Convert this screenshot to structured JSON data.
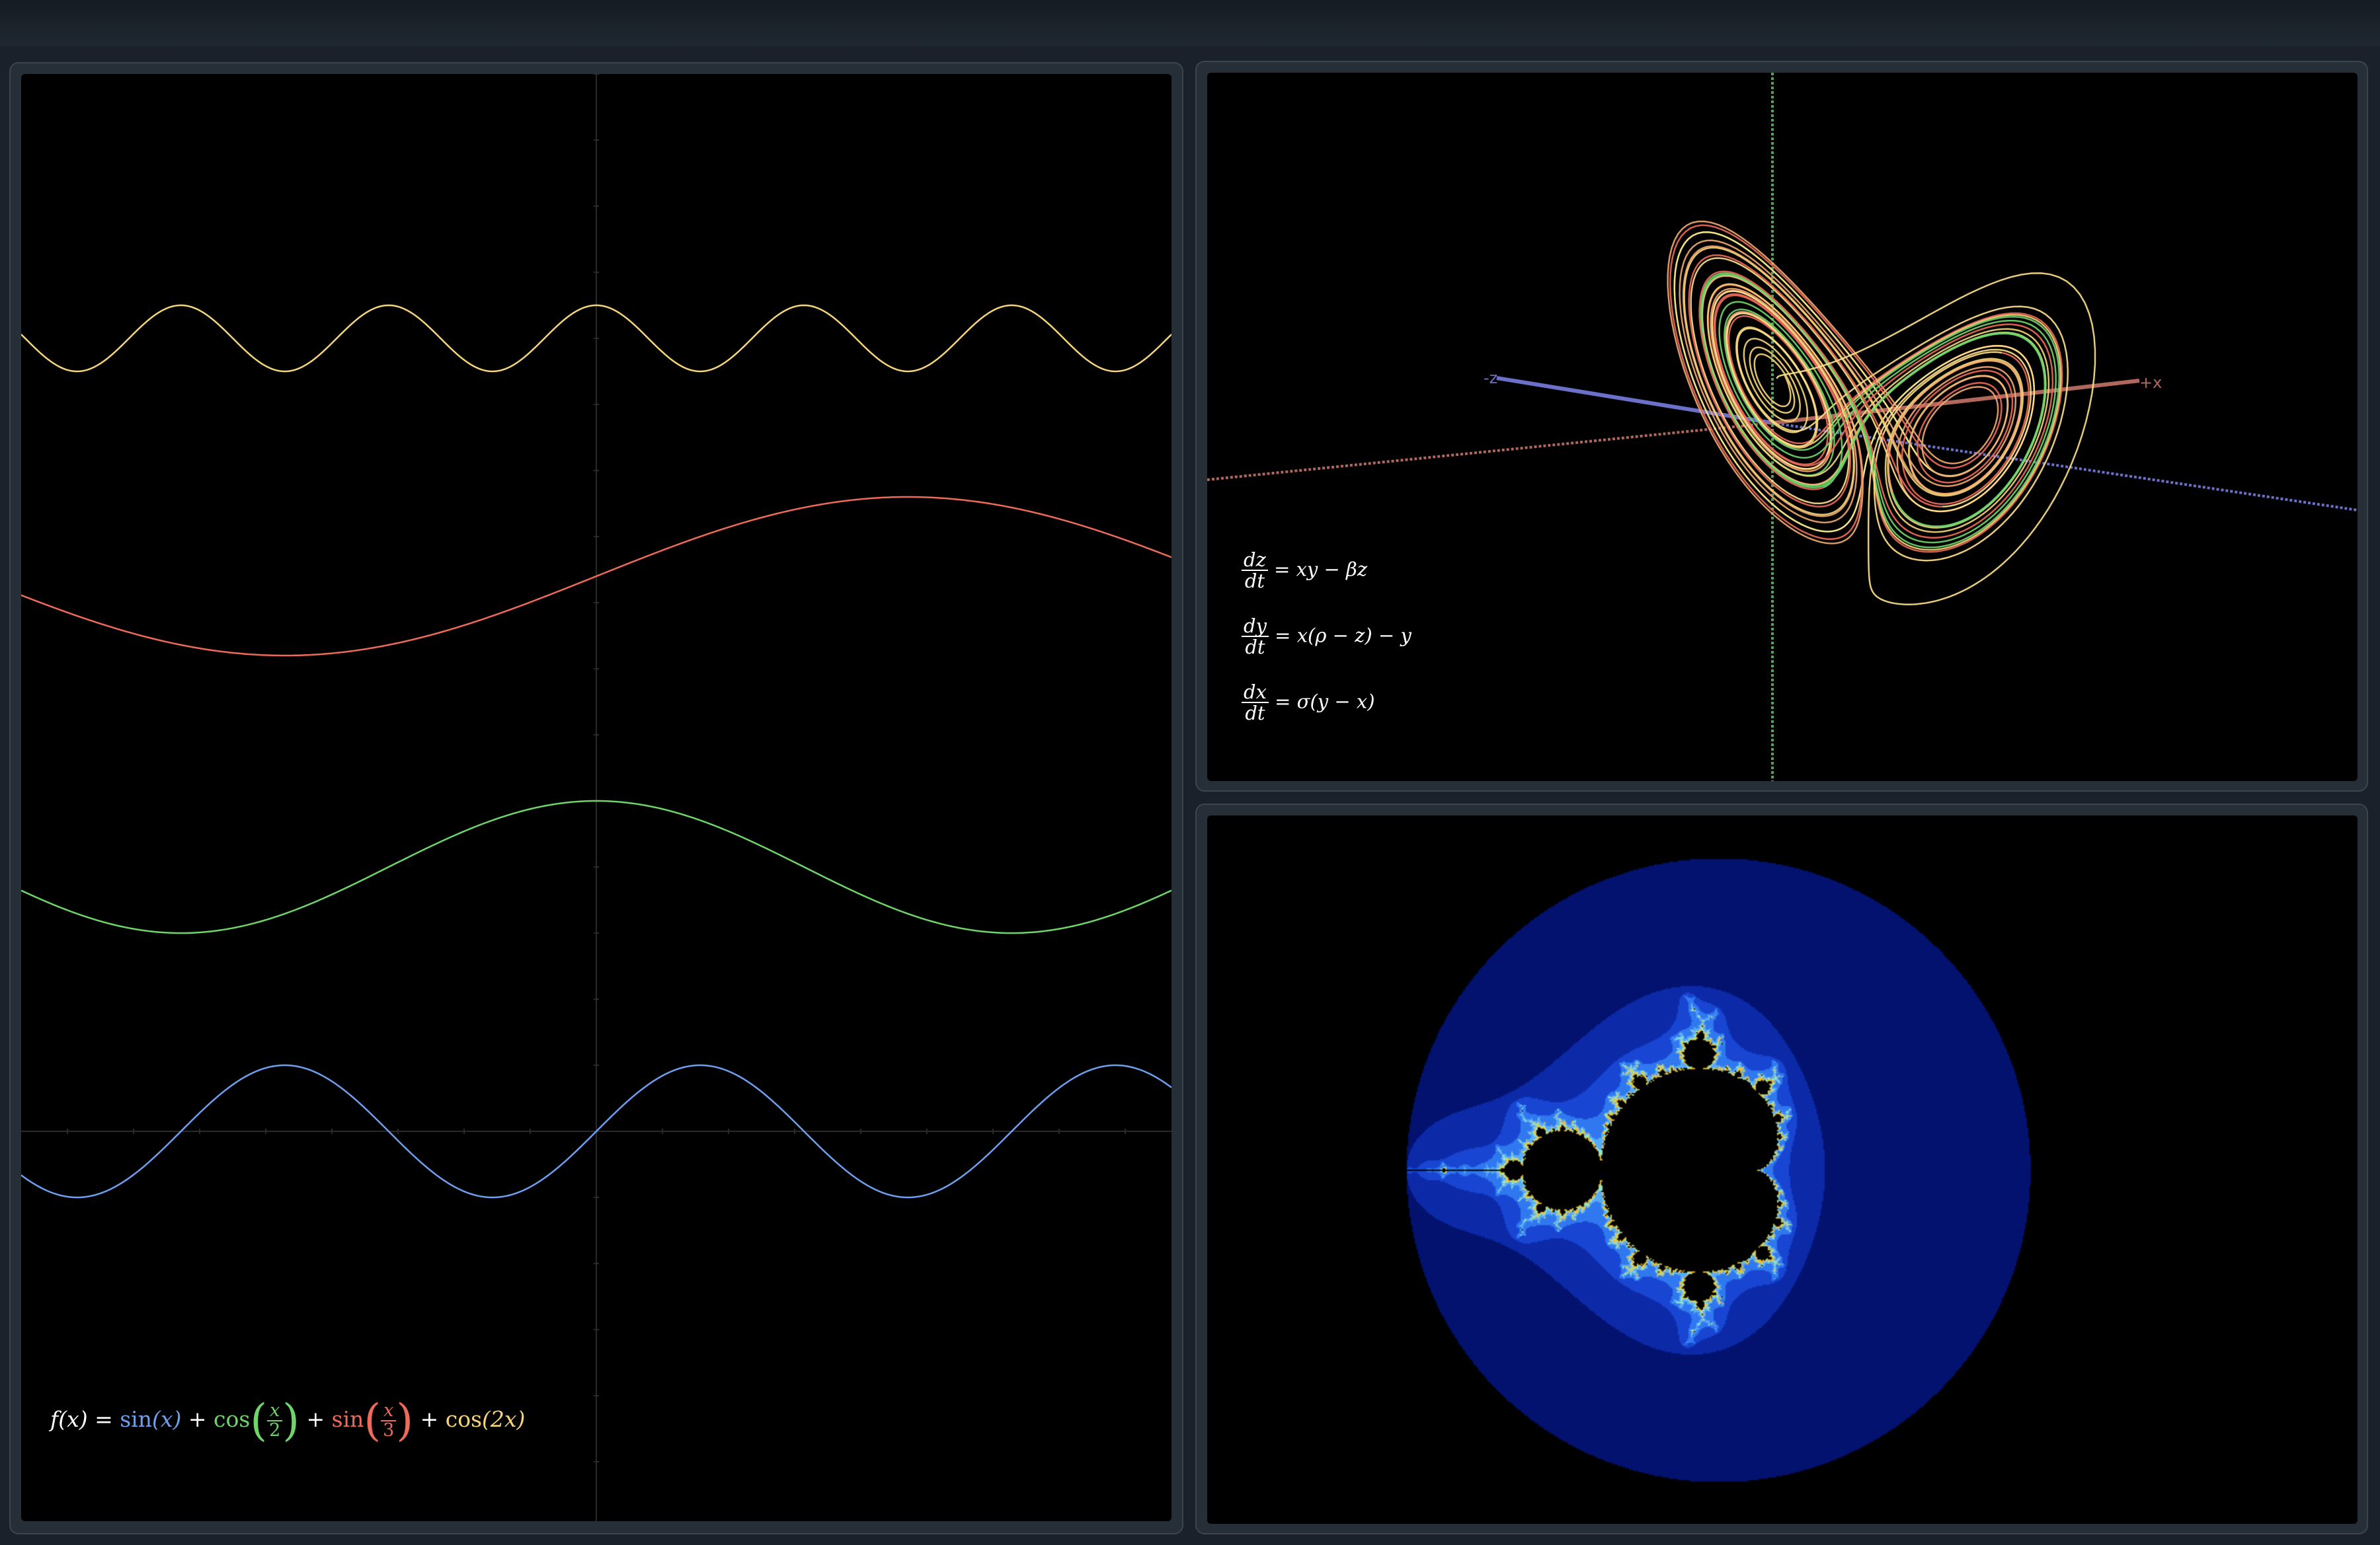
{
  "panels": {
    "function_plot": {
      "formula": {
        "lhs": "f(x)",
        "eq": "=",
        "t1_fn": "sin",
        "t1_arg": "(x)",
        "plus1": "+",
        "t2_fn": "cos",
        "t2_num": "x",
        "t2_den": "2",
        "plus2": "+",
        "t3_fn": "sin",
        "t3_num": "x",
        "t3_den": "3",
        "plus3": "+",
        "t4_fn": "cos",
        "t4_arg": "(2x)"
      }
    },
    "lorenz": {
      "equations": [
        {
          "num": "dz",
          "den": "dt",
          "rhs": "= xy − βz"
        },
        {
          "num": "dy",
          "den": "dt",
          "rhs": "= x(ρ − z) − y"
        },
        {
          "num": "dx",
          "den": "dt",
          "rhs": "= σ(y − x)"
        }
      ],
      "axis_labels": {
        "neg_z": "-z",
        "pos_x": "+x"
      }
    },
    "mandelbrot": {}
  },
  "colors": {
    "sin_x": "#6f9ff0",
    "cos_x_2": "#6fd56a",
    "sin_x_3": "#ee6a5a",
    "cos_2x": "#f5d57a",
    "axis_x": "#b0685c",
    "axis_y": "#56a056",
    "axis_z": "#6c70c8",
    "mandel_outer": "#000a45",
    "mandel_mid": "#0c2aa8",
    "mandel_inner": "#2f78f0",
    "mandel_edge": "#f0c030"
  },
  "chart_data": [
    {
      "type": "line",
      "title": "",
      "xlabel": "",
      "ylabel": "",
      "series": [
        {
          "function": "sin(x)",
          "color": "#6f9ff0"
        },
        {
          "function": "cos(x/2)",
          "color": "#6fd56a"
        },
        {
          "function": "sin(x/3)",
          "color": "#ee6a5a"
        },
        {
          "function": "cos(2x)",
          "color": "#f5d57a"
        }
      ],
      "x_range": [
        -6.1,
        16.3
      ],
      "grid": false
    }
  ]
}
